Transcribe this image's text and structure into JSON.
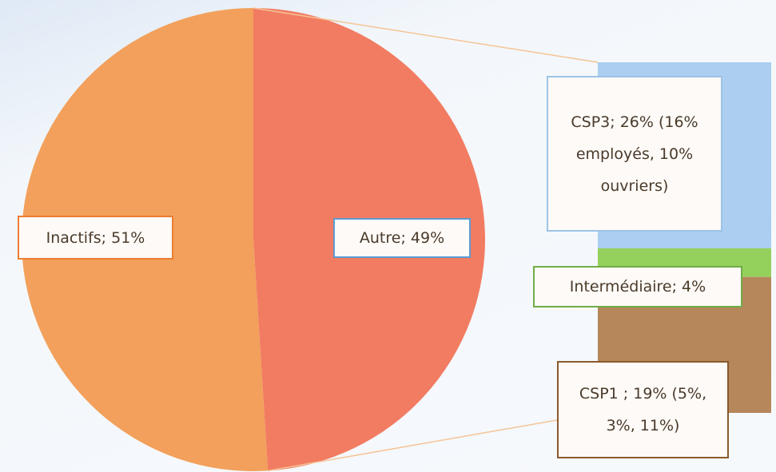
{
  "chart_data": {
    "type": "pie",
    "values": [
      51,
      49
    ],
    "value_labels": [
      "Inactifs; 51%",
      "Autre; 49%"
    ],
    "colors": [
      "#f2a05b",
      "#f27c62"
    ],
    "breakdown": {
      "values": [
        26,
        4,
        19
      ],
      "value_labels": [
        "CSP3; 26% (16% employés, 10% ouvriers)",
        "Intermédiaire; 4%",
        "CSP1 ; 19% (5%, 3%, 11%)"
      ],
      "colors": [
        "#abcef1",
        "#94d05c",
        "#b5875b"
      ]
    }
  }
}
